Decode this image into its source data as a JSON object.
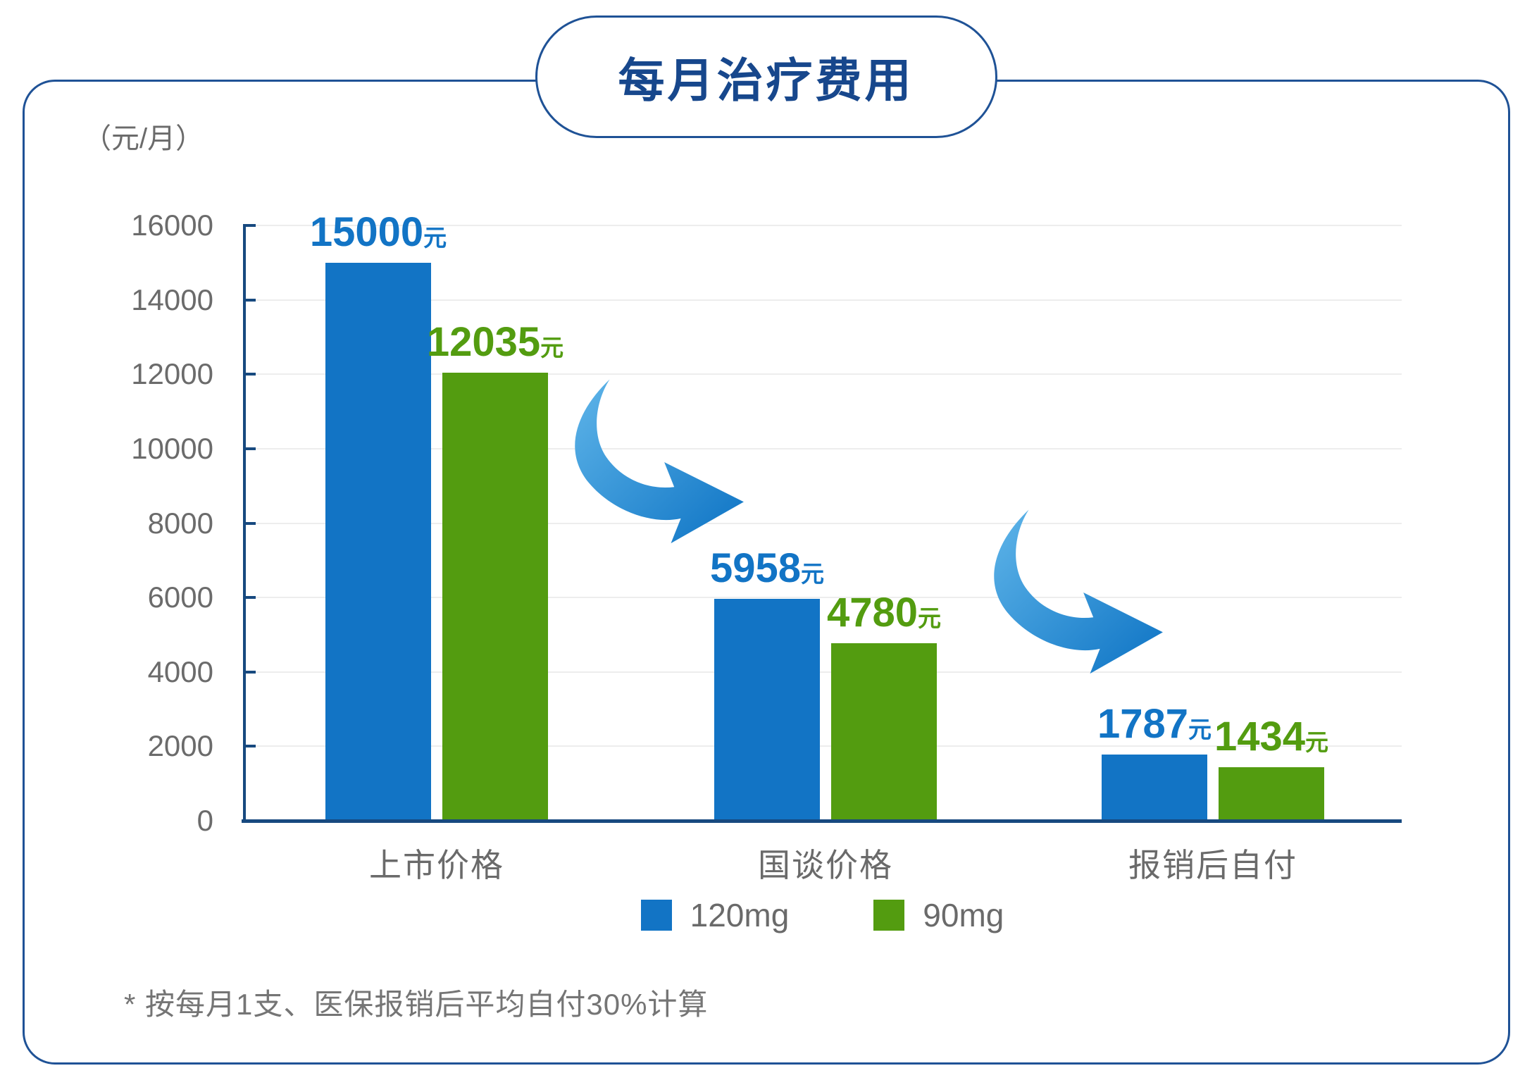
{
  "title": "每月治疗费用",
  "unit_label": "（元/月）",
  "footnote": "* 按每月1支、医保报销后平均自付30%计算",
  "legend": {
    "items": [
      {
        "label": "120mg",
        "color": "#1274c5"
      },
      {
        "label": "90mg",
        "color": "#539c10"
      }
    ]
  },
  "colors": {
    "navy_border": "#1f5296",
    "navy_title": "#17478c",
    "navy_axis": "#17497f",
    "blue_series": "#1274c5",
    "green_series": "#539c10",
    "gray_text": "#6a6a6a",
    "gridline": "#ededed",
    "arrow_gradient_start": "#5fb5e9",
    "arrow_gradient_end": "#0d73c4"
  },
  "icons": {
    "decrease_arrow": "curved-swoosh-arrow-down-right"
  },
  "chart_data": {
    "type": "bar",
    "title": "每月治疗费用",
    "ylabel": "（元/月）",
    "categories": [
      "上市价格",
      "国谈价格",
      "报销后自付"
    ],
    "series": [
      {
        "name": "120mg",
        "color": "#1274c5",
        "values": [
          15000,
          5958,
          1787
        ]
      },
      {
        "name": "90mg",
        "color": "#539c10",
        "values": [
          12035,
          4780,
          1434
        ]
      }
    ],
    "value_suffix": "元",
    "ylim": [
      0,
      16000
    ],
    "yticks": [
      0,
      2000,
      4000,
      6000,
      8000,
      10000,
      12000,
      14000,
      16000
    ],
    "grid": true,
    "legend_position": "bottom",
    "annotations": [
      "decrease-arrow between 上市价格 and 国谈价格",
      "decrease-arrow between 国谈价格 and 报销后自付"
    ]
  }
}
